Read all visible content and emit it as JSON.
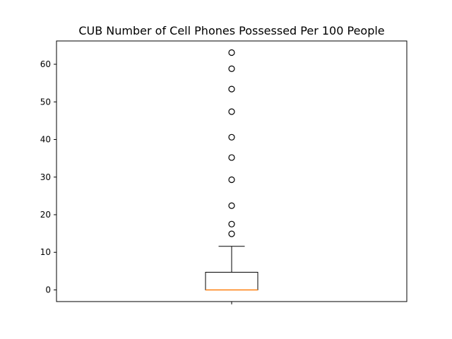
{
  "chart_data": {
    "type": "box",
    "title": "CUB Number of Cell Phones Possessed Per 100 People",
    "xlabel": "",
    "ylabel": "",
    "ylim": [
      -3.1,
      66.2
    ],
    "yticks": [
      0,
      10,
      20,
      30,
      40,
      50,
      60
    ],
    "xticks": [
      1
    ],
    "xtick_labels": [
      ""
    ],
    "grid": false,
    "box": {
      "position": 1,
      "min": 0,
      "q1": 0,
      "median": 0,
      "q3": 4.7,
      "whisker_low": 0,
      "whisker_high": 11.6,
      "outliers": [
        14.9,
        17.5,
        22.4,
        29.3,
        35.2,
        40.6,
        47.4,
        53.4,
        58.8,
        63.1
      ]
    },
    "colors": {
      "box": "#000000",
      "median": "#ff7f0e",
      "outlier": "#000000"
    }
  }
}
